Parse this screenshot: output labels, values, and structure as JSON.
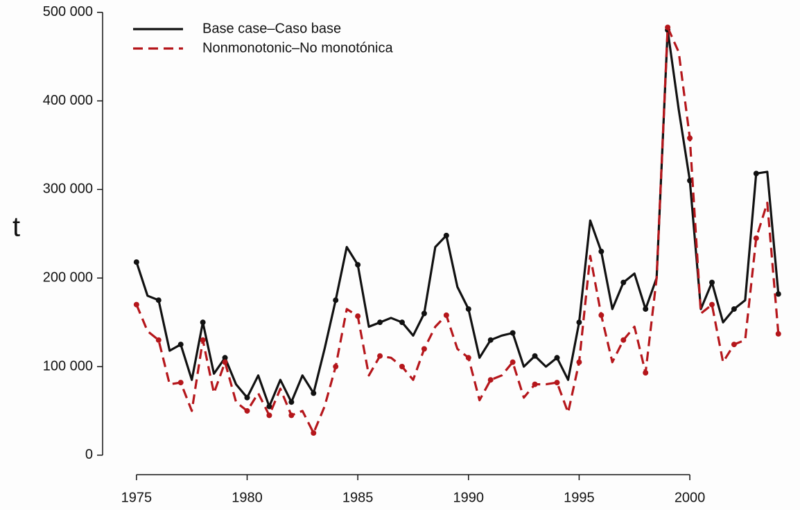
{
  "chart_data": {
    "type": "line",
    "y_label": "t",
    "x": [
      1975,
      1975.5,
      1976,
      1976.5,
      1977,
      1977.5,
      1978,
      1978.5,
      1979,
      1979.5,
      1980,
      1980.5,
      1981,
      1981.5,
      1982,
      1982.5,
      1983,
      1983.5,
      1984,
      1984.5,
      1985,
      1985.5,
      1986,
      1986.5,
      1987,
      1987.5,
      1988,
      1988.5,
      1989,
      1989.5,
      1990,
      1990.5,
      1991,
      1991.5,
      1992,
      1992.5,
      1993,
      1993.5,
      1994,
      1994.5,
      1995,
      1995.5,
      1996,
      1996.5,
      1997,
      1997.5,
      1998,
      1998.5,
      1999,
      1999.5,
      2000,
      2000.5,
      2001,
      2001.5,
      2002,
      2002.5,
      2003,
      2003.5,
      2004
    ],
    "series": [
      {
        "name": "Base case–Caso base",
        "color": "#111111",
        "dash": false,
        "values": [
          218000,
          180000,
          175000,
          118000,
          125000,
          85000,
          150000,
          92000,
          110000,
          80000,
          65000,
          90000,
          55000,
          85000,
          60000,
          90000,
          70000,
          120000,
          175000,
          235000,
          215000,
          145000,
          150000,
          155000,
          150000,
          135000,
          160000,
          235000,
          248000,
          190000,
          165000,
          110000,
          130000,
          135000,
          138000,
          100000,
          112000,
          100000,
          110000,
          85000,
          150000,
          265000,
          230000,
          165000,
          195000,
          205000,
          165000,
          200000,
          480000,
          390000,
          310000,
          165000,
          195000,
          150000,
          165000,
          175000,
          318000,
          320000,
          182000
        ]
      },
      {
        "name": "Nonmonotonic–No monotónica",
        "color": "#b5161b",
        "dash": true,
        "values": [
          170000,
          140000,
          130000,
          80000,
          82000,
          50000,
          130000,
          70000,
          105000,
          60000,
          50000,
          70000,
          45000,
          75000,
          45000,
          50000,
          25000,
          55000,
          100000,
          165000,
          157000,
          90000,
          112000,
          110000,
          100000,
          85000,
          120000,
          145000,
          158000,
          120000,
          110000,
          62000,
          85000,
          90000,
          105000,
          65000,
          80000,
          80000,
          82000,
          48000,
          105000,
          225000,
          158000,
          105000,
          130000,
          145000,
          93000,
          200000,
          483000,
          455000,
          358000,
          160000,
          170000,
          105000,
          125000,
          130000,
          245000,
          285000,
          137000
        ]
      }
    ],
    "xlim": [
      1973.47,
      2004.79
    ],
    "xticks": [
      1975,
      1980,
      1985,
      1990,
      1995,
      2000
    ],
    "ylim": [
      -22000,
      510000
    ],
    "yticks": [
      0,
      {
        "value": 100000,
        "label": "100 000"
      },
      {
        "value": 200000,
        "label": "200 000"
      },
      {
        "value": 300000,
        "label": "300 000"
      },
      {
        "value": 400000,
        "label": "400 000"
      },
      {
        "value": 500000,
        "label": "500 000"
      }
    ],
    "legend": "top-left"
  }
}
